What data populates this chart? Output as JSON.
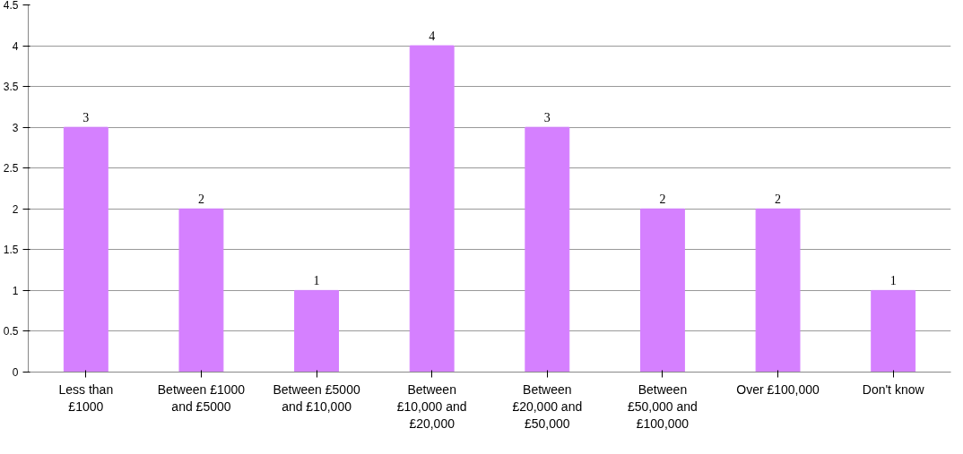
{
  "chart_data": {
    "type": "bar",
    "categories": [
      "Less than £1000",
      "Between £1000 and £5000",
      "Between £5000 and £10,000",
      "Between £10,000 and £20,000",
      "Between £20,000 and £50,000",
      "Between £50,000 and £100,000",
      "Over £100,000",
      "Don't know"
    ],
    "values": [
      3,
      2,
      1,
      4,
      3,
      2,
      2,
      1
    ],
    "color": "#d580ff",
    "ylim": [
      0,
      4.5
    ],
    "yticks": [
      0,
      0.5,
      1,
      1.5,
      2,
      2.5,
      3,
      3.5,
      4,
      4.5
    ],
    "grid": "y",
    "data_labels": true
  }
}
